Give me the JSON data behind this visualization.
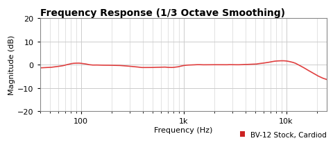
{
  "title": "Frequency Response (1/3 Octave Smoothing)",
  "xlabel": "Frequency (Hz)",
  "ylabel": "Magnitude (dB)",
  "xlim": [
    40,
    25000
  ],
  "ylim": [
    -20,
    20
  ],
  "yticks": [
    -20,
    -10,
    0,
    10,
    20
  ],
  "xtick_labels": [
    "100",
    "1k",
    "10k"
  ],
  "xtick_positions": [
    100,
    1000,
    10000
  ],
  "line_color": "#e04040",
  "line_width": 1.2,
  "legend_label": "BV-12 Stock, Cardiod",
  "legend_marker_color": "#cc2222",
  "bg_color": "#ffffff",
  "grid_color": "#cccccc",
  "title_color": "#000000",
  "title_fontsize": 10,
  "label_fontsize": 8,
  "tick_fontsize": 8
}
